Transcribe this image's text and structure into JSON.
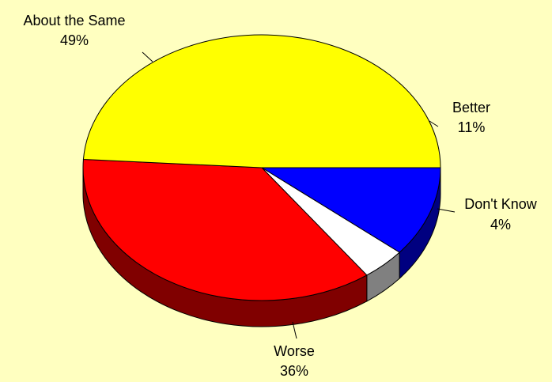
{
  "chart_data": {
    "type": "pie",
    "title": "",
    "slices": [
      {
        "label": "Better",
        "value": 11,
        "value_label": "11%",
        "color": "#0000ff",
        "side_color": "#000080"
      },
      {
        "label": "Don't Know",
        "value": 4,
        "value_label": "4%",
        "color": "#ffffff",
        "side_color": "#808080"
      },
      {
        "label": "Worse",
        "value": 36,
        "value_label": "36%",
        "color": "#ff0000",
        "side_color": "#800000"
      },
      {
        "label": "About the Same",
        "value": 49,
        "value_label": "49%",
        "color": "#ffff00",
        "side_color": "#808000"
      }
    ],
    "background_color": "#ffffc0",
    "three_d": true
  }
}
